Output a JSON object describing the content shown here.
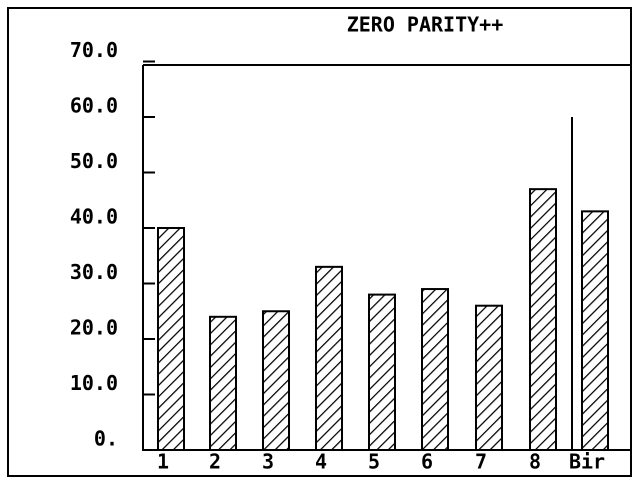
{
  "chart_data": {
    "type": "bar",
    "title": "ZERO PARITY++",
    "categories": [
      "1",
      "2",
      "3",
      "4",
      "5",
      "6",
      "7",
      "8",
      "Bir"
    ],
    "values": [
      40,
      24,
      25,
      33,
      28,
      29,
      26,
      47,
      43
    ],
    "color": "#000000",
    "ylim": [
      0,
      70
    ],
    "yticks": [
      {
        "value": 0,
        "label": "0."
      },
      {
        "value": 10,
        "label": "10.0"
      },
      {
        "value": 20,
        "label": "20.0"
      },
      {
        "value": 30,
        "label": "30.0"
      },
      {
        "value": 40,
        "label": "40.0"
      },
      {
        "value": 50,
        "label": "50.0"
      },
      {
        "value": 60,
        "label": "60.0"
      },
      {
        "value": 70,
        "label": "70.0"
      }
    ]
  }
}
